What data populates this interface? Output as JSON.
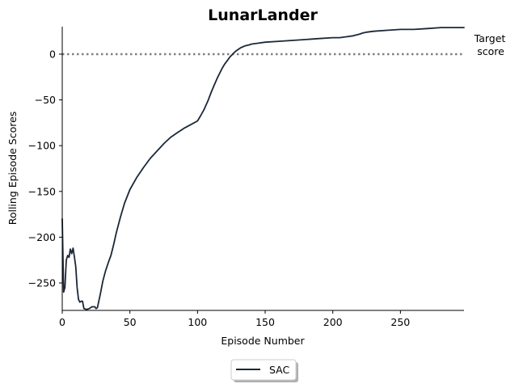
{
  "chart_data": {
    "type": "line",
    "title": "LunarLander",
    "xlabel": "Episode Number",
    "ylabel": "Rolling Episode Scores",
    "xlim": [
      0,
      297
    ],
    "ylim": [
      -280,
      30
    ],
    "xticks": [
      0,
      50,
      100,
      150,
      200,
      250
    ],
    "yticks": [
      0,
      -50,
      -100,
      -150,
      -200,
      -250
    ],
    "grid": false,
    "legend_position": "bottom-center",
    "target": {
      "value": 0,
      "label_line1": "Target",
      "label_line2": "score",
      "color": "#808080",
      "style": "dotted"
    },
    "series": [
      {
        "name": "SAC",
        "color": "#1b2838",
        "x": [
          0,
          1,
          2,
          3,
          4,
          5,
          6,
          7,
          8,
          9,
          10,
          11,
          12,
          13,
          14,
          15,
          16,
          18,
          20,
          22,
          24,
          25,
          26,
          27,
          28,
          30,
          32,
          34,
          36,
          38,
          40,
          43,
          46,
          50,
          55,
          60,
          65,
          70,
          75,
          80,
          85,
          90,
          95,
          100,
          102,
          105,
          108,
          110,
          112,
          115,
          118,
          120,
          122,
          124,
          126,
          128,
          130,
          132,
          135,
          138,
          140,
          145,
          150,
          160,
          170,
          180,
          190,
          200,
          205,
          210,
          215,
          220,
          222,
          225,
          230,
          240,
          250,
          260,
          270,
          280,
          290,
          297
        ],
        "y": [
          -180,
          -260,
          -255,
          -225,
          -220,
          -222,
          -213,
          -218,
          -212,
          -222,
          -232,
          -255,
          -268,
          -271,
          -270,
          -270,
          -278,
          -279,
          -278,
          -276,
          -276,
          -278,
          -277,
          -270,
          -263,
          -248,
          -237,
          -228,
          -220,
          -208,
          -195,
          -178,
          -163,
          -148,
          -135,
          -124,
          -114,
          -106,
          -98,
          -91,
          -86,
          -81,
          -77,
          -73,
          -68,
          -60,
          -50,
          -42,
          -35,
          -25,
          -16,
          -11,
          -7,
          -3,
          0,
          3,
          5,
          7,
          9,
          10,
          11,
          12,
          13,
          14,
          15,
          16,
          17,
          18,
          18,
          19,
          20,
          22,
          23,
          24,
          25,
          26,
          27,
          27,
          28,
          29,
          29,
          29
        ]
      }
    ]
  }
}
